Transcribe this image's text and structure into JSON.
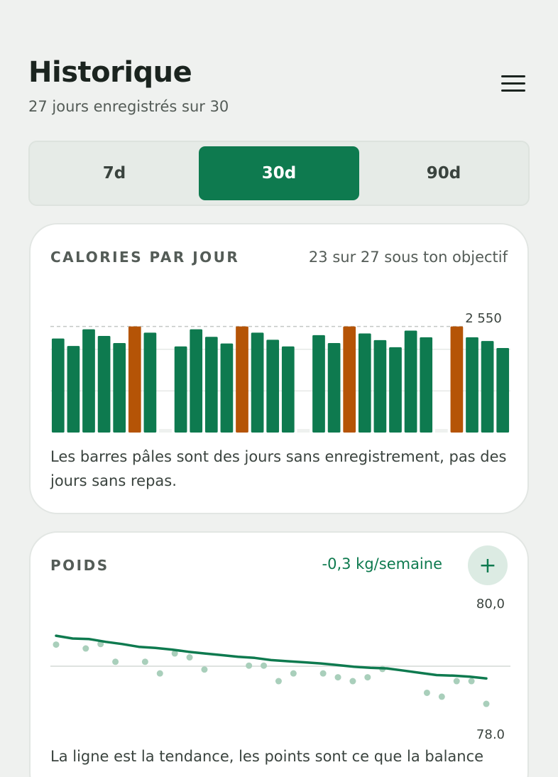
{
  "header": {
    "title": "Historique",
    "subtitle": "27 jours enregistrés sur 30",
    "menu_icon": "hamburger-menu-icon"
  },
  "range_tabs": [
    {
      "label": "7d",
      "active": false
    },
    {
      "label": "30d",
      "active": true
    },
    {
      "label": "90d",
      "active": false
    }
  ],
  "calories_card": {
    "label": "CALORIES PAR JOUR",
    "meta": "23 sur 27 sous ton objectif",
    "caption": "Les barres pâles sont des jours sans enregistrement, pas des jours sans repas.",
    "chart_data": {
      "type": "bar",
      "target_label": "2 550",
      "target": 2550,
      "ylim": [
        0,
        2850
      ],
      "values": [
        2260,
        2080,
        2480,
        2320,
        2150,
        2550,
        2400,
        null,
        2070,
        2480,
        2300,
        2140,
        2550,
        2400,
        2230,
        2070,
        null,
        2340,
        2150,
        2550,
        2380,
        2220,
        2050,
        2450,
        2290,
        null,
        2550,
        2290,
        2200,
        2030
      ],
      "over_color": "#b55406",
      "under_color": "#0e7a4f",
      "missing_color": "#eef1ef",
      "gridlines": [
        1000,
        2000
      ]
    }
  },
  "weight_card": {
    "label": "POIDS",
    "trend": "-0,3 kg/semaine",
    "add_icon": "plus-icon",
    "caption": "La ligne est la tendance, les points sont ce que la balance",
    "chart_data": {
      "type": "line",
      "ymax_label": "80,0",
      "ymin_label": "78,0",
      "ylim": [
        78.0,
        80.0
      ],
      "midline": 79.0,
      "trend": [
        79.55,
        79.5,
        79.49,
        79.44,
        79.4,
        79.35,
        79.33,
        79.3,
        79.26,
        79.23,
        79.2,
        79.17,
        79.15,
        79.11,
        79.09,
        79.07,
        79.05,
        79.02,
        78.99,
        78.97,
        78.96,
        78.92,
        78.88,
        78.84,
        78.83,
        78.81,
        78.78
      ],
      "points": [
        {
          "day": 1,
          "kg": 79.39
        },
        {
          "day": 3,
          "kg": 79.32
        },
        {
          "day": 4,
          "kg": 79.4
        },
        {
          "day": 5,
          "kg": 79.08
        },
        {
          "day": 7,
          "kg": 79.08
        },
        {
          "day": 8,
          "kg": 78.87
        },
        {
          "day": 9,
          "kg": 79.23
        },
        {
          "day": 10,
          "kg": 79.16
        },
        {
          "day": 11,
          "kg": 78.94
        },
        {
          "day": 14,
          "kg": 79.01
        },
        {
          "day": 15,
          "kg": 79.01
        },
        {
          "day": 16,
          "kg": 78.73
        },
        {
          "day": 17,
          "kg": 78.87
        },
        {
          "day": 19,
          "kg": 78.87
        },
        {
          "day": 20,
          "kg": 78.8
        },
        {
          "day": 21,
          "kg": 78.73
        },
        {
          "day": 22,
          "kg": 78.8
        },
        {
          "day": 23,
          "kg": 78.95
        },
        {
          "day": 26,
          "kg": 78.52
        },
        {
          "day": 27,
          "kg": 78.45
        },
        {
          "day": 28,
          "kg": 78.73
        },
        {
          "day": 29,
          "kg": 78.73
        },
        {
          "day": 30,
          "kg": 78.32
        }
      ],
      "line_color": "#0e7a4f",
      "point_color": "#a9cfbb"
    }
  }
}
